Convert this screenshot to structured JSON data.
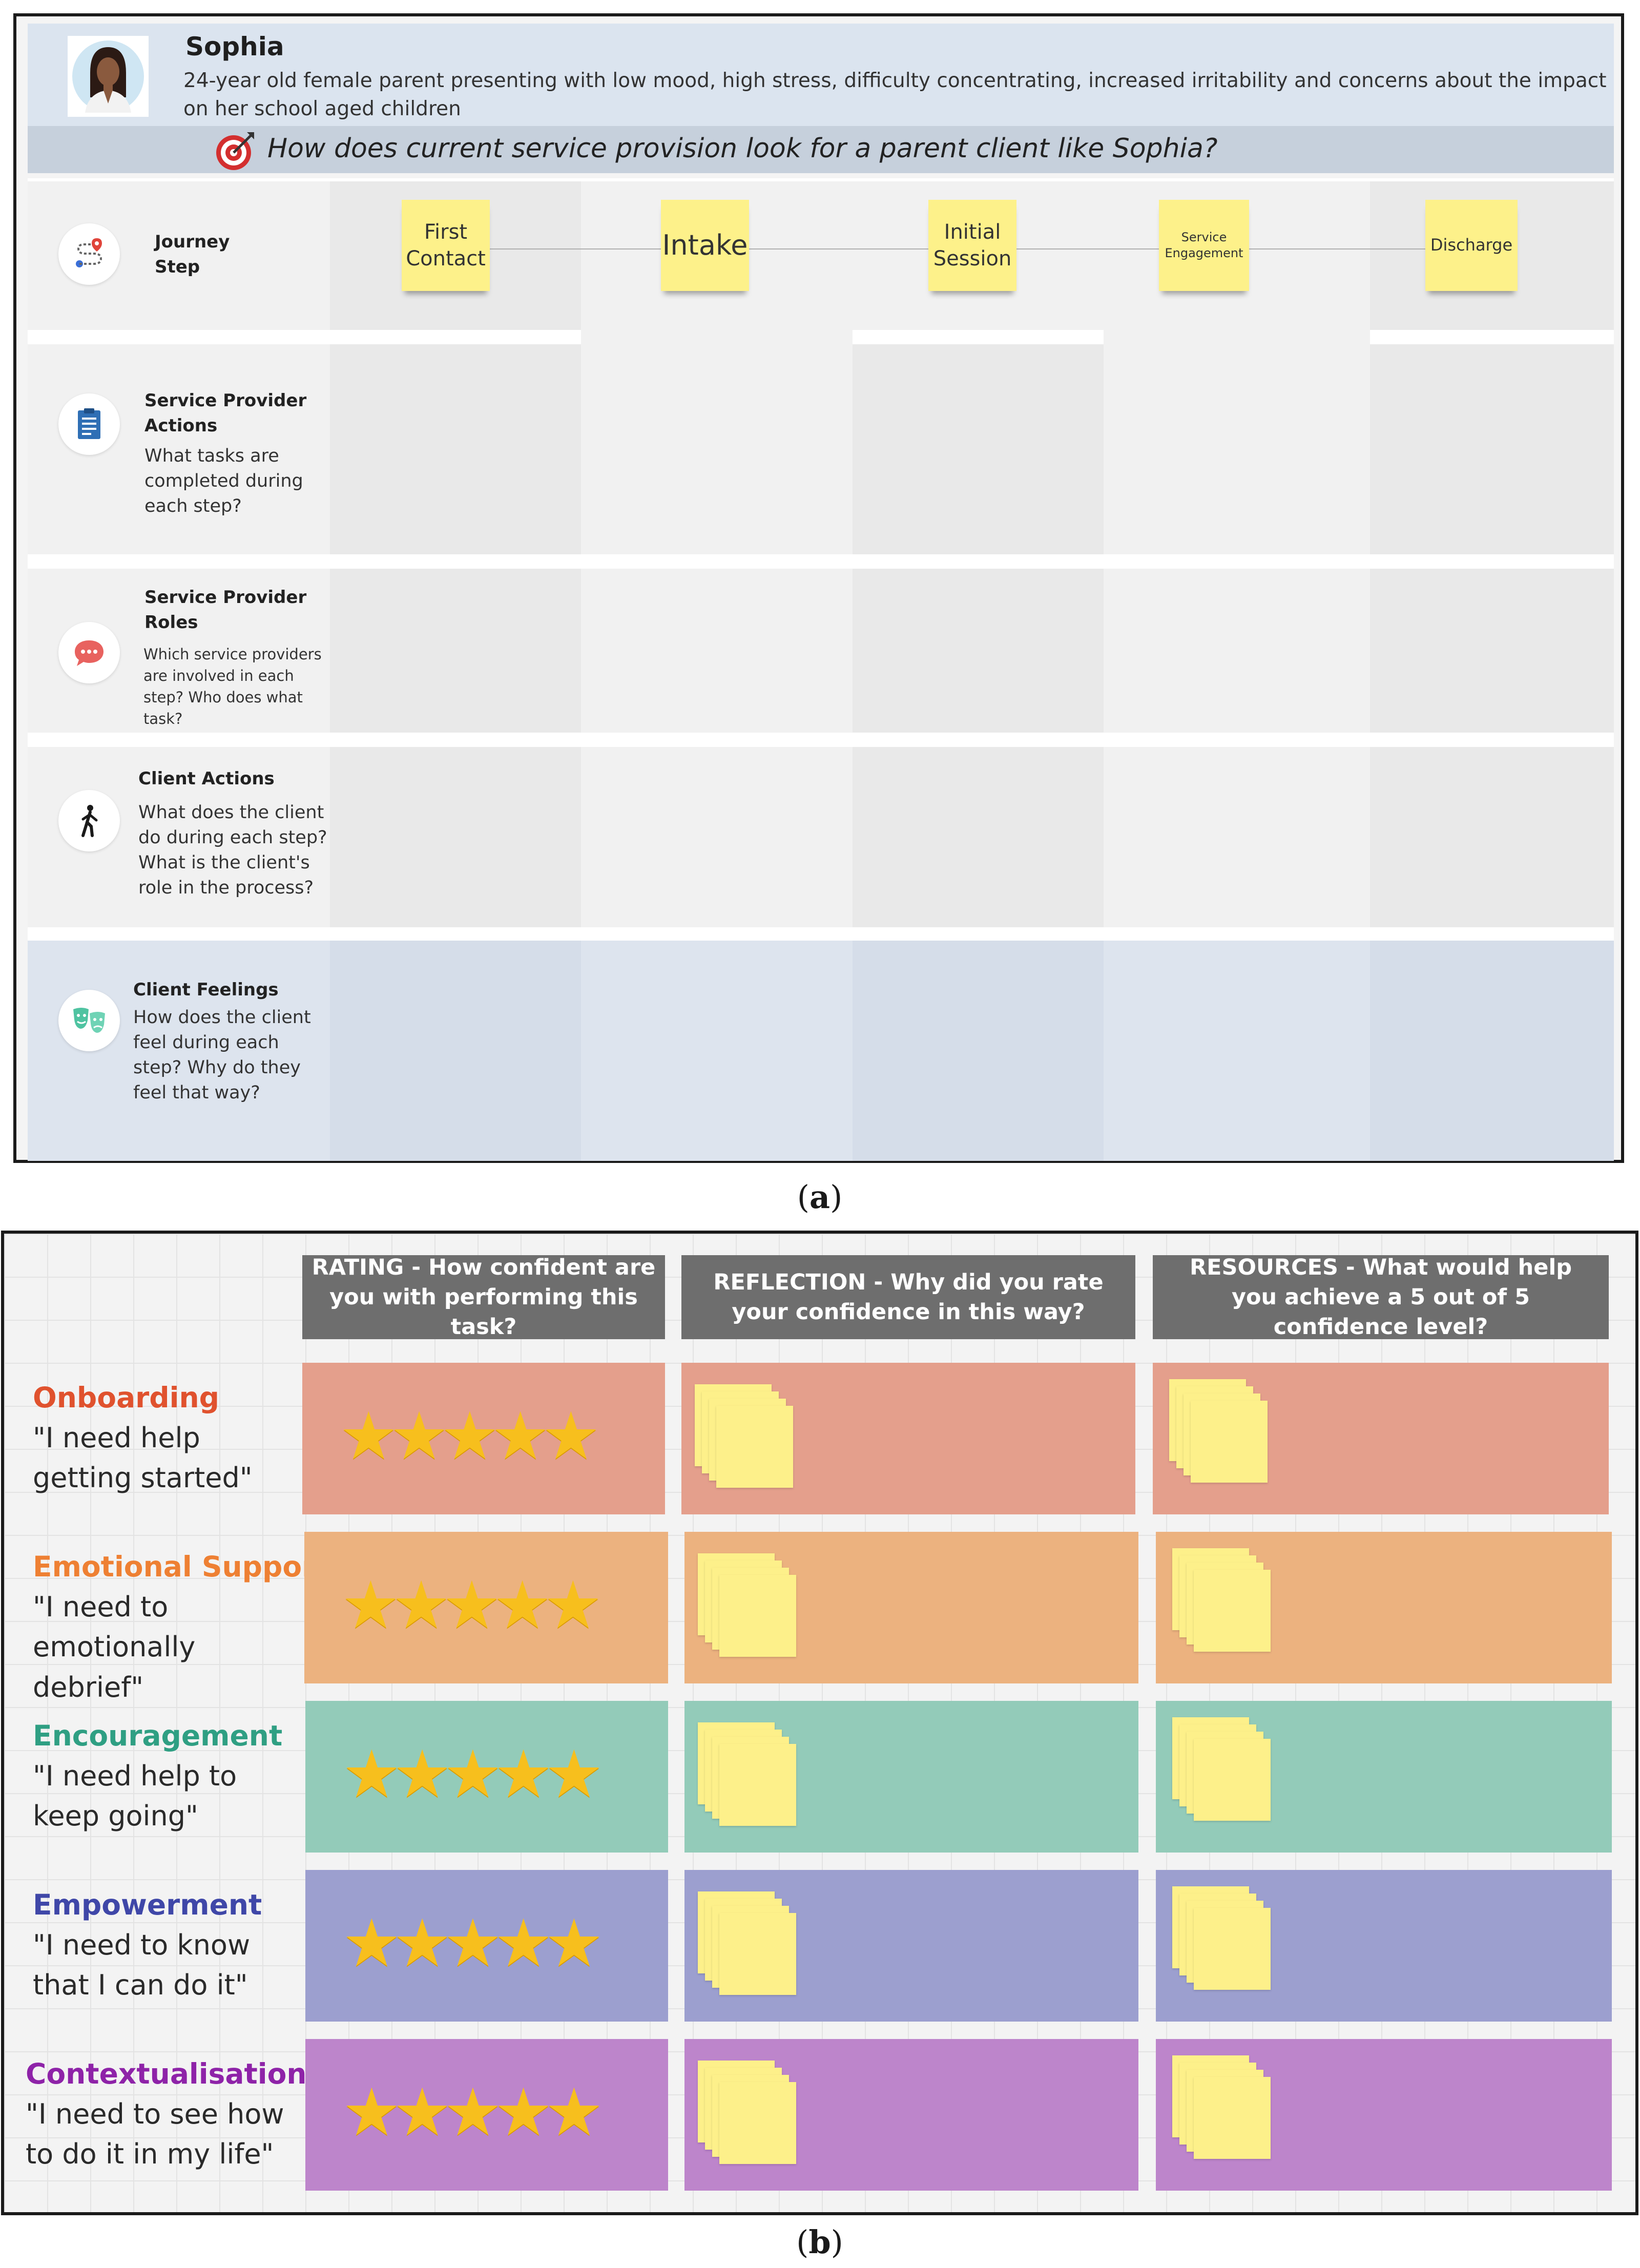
{
  "panel_a": {
    "caption_letter": "a",
    "persona": {
      "name": "Sophia",
      "description": "24-year old female parent presenting with low mood, high stress, difficulty concentrating, increased irritability and concerns about the impact on her school aged children",
      "question": "How does current service provision look for a parent client like Sophia?"
    },
    "journey_label": [
      "Journey",
      "Step"
    ],
    "steps": [
      "First Contact",
      "Intake",
      "Initial Session",
      "Service Engagement",
      "Discharge"
    ],
    "rows": [
      {
        "title": "Service Provider Actions",
        "desc": "What tasks are completed during each step?"
      },
      {
        "title": "Service Provider Roles",
        "desc": "Which service providers are involved in each step? Who does what task?"
      },
      {
        "title": "Client Actions",
        "desc": "What does the client do during each step? What is the client's role in the process?"
      },
      {
        "title": "Client Feelings",
        "desc": "How does the client feel during each step? Why do they feel that way?"
      }
    ],
    "icons": [
      "journey-route-icon",
      "clipboard-icon",
      "chat-bubble-icon",
      "walking-person-icon",
      "theater-masks-icon",
      "target-icon"
    ]
  },
  "panel_b": {
    "caption_letter": "b",
    "headers": [
      "RATING - How confident are you with performing this task?",
      "REFLECTION - Why did you rate your confidence in this way?",
      "RESOURCES - What would help you achieve a 5 out of 5 confidence level?"
    ],
    "rows": [
      {
        "title": "Onboarding",
        "quote": "\"I need help getting started\"",
        "stars": 5,
        "title_color": "#e0522e",
        "fill": "#e49f8c"
      },
      {
        "title": "Emotional Support",
        "quote": "\"I need to emotionally debrief\"",
        "stars": 5,
        "title_color": "#ee8033",
        "fill": "#ecb27f"
      },
      {
        "title": "Encouragement",
        "quote": "\"I need help to keep going\"",
        "stars": 5,
        "title_color": "#2f9f83",
        "fill": "#93cbb9"
      },
      {
        "title": "Empowerment",
        "quote": "\"I need to know that I can do it\"",
        "stars": 5,
        "title_color": "#3f47a8",
        "fill": "#9c9fcf"
      },
      {
        "title": "Contextualisation",
        "quote": "\"I need to see how to do it in my life\"",
        "stars": 5,
        "title_color": "#8e23a8",
        "fill": "#bd85cb"
      }
    ]
  }
}
